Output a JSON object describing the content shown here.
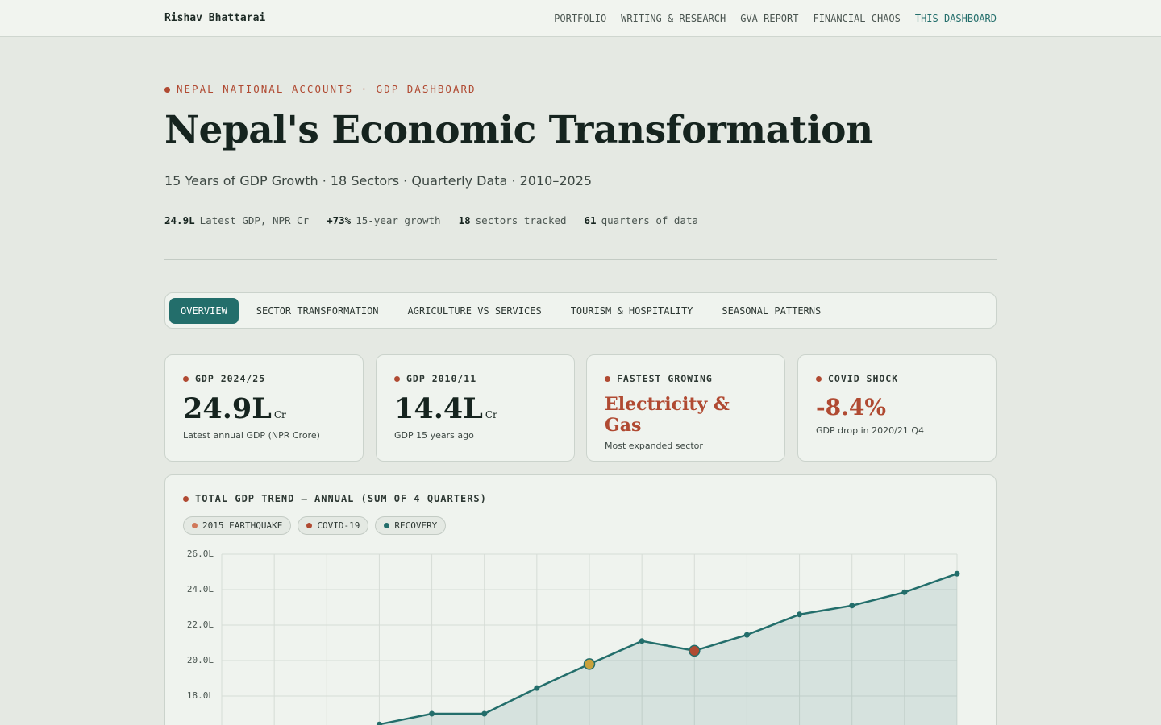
{
  "nav": {
    "brand": "Rishav Bhattarai",
    "links": [
      "PORTFOLIO",
      "WRITING & RESEARCH",
      "GVA REPORT",
      "FINANCIAL CHAOS",
      "THIS DASHBOARD"
    ]
  },
  "header": {
    "eyebrow": "NEPAL NATIONAL ACCOUNTS · GDP DASHBOARD",
    "title": "Nepal's Economic Transformation",
    "subtitle": "15 Years of GDP Growth · 18 Sectors · Quarterly Data · 2010–2025",
    "stats": [
      {
        "value": "24.9L",
        "label": "Latest GDP, NPR Cr"
      },
      {
        "value": "+73%",
        "label": "15-year growth"
      },
      {
        "value": "18",
        "label": "sectors tracked"
      },
      {
        "value": "61",
        "label": "quarters of data"
      }
    ]
  },
  "tabs": [
    "OVERVIEW",
    "SECTOR TRANSFORMATION",
    "AGRICULTURE VS SERVICES",
    "TOURISM & HOSPITALITY",
    "SEASONAL PATTERNS"
  ],
  "cards": [
    {
      "label": "GDP 2024/25",
      "value": "24.9L",
      "unit": "Cr",
      "note": "Latest annual GDP (NPR Crore)"
    },
    {
      "label": "GDP 2010/11",
      "value": "14.4L",
      "unit": "Cr",
      "note": "GDP 15 years ago"
    },
    {
      "label": "FASTEST GROWING",
      "value": "Electricity & Gas",
      "note": "Most expanded sector"
    },
    {
      "label": "COVID SHOCK",
      "value": "-8.4%",
      "note": "GDP drop in 2020/21 Q4"
    }
  ],
  "chart_data": {
    "type": "line",
    "title": "TOTAL GDP TREND — ANNUAL (SUM OF 4 QUARTERS)",
    "legend": [
      {
        "name": "2015 EARTHQUAKE",
        "color": "#d0785a"
      },
      {
        "name": "COVID-19",
        "color": "#b04a32"
      },
      {
        "name": "RECOVERY",
        "color": "#236e6b"
      }
    ],
    "categories": [
      null,
      null,
      null,
      null,
      null,
      null,
      null,
      null,
      null,
      null,
      null,
      null,
      null,
      null,
      null
    ],
    "series": [
      {
        "name": "RECOVERY",
        "color": "#236e6b",
        "values": [
          null,
          null,
          null,
          16.4,
          17.0,
          17.0,
          18.45,
          19.8,
          21.1,
          20.55,
          21.45,
          22.6,
          23.1,
          23.85,
          24.9
        ]
      }
    ],
    "markers": [
      {
        "name": "2015 EARTHQUAKE",
        "index": 7,
        "color": "#c9a13b"
      },
      {
        "name": "COVID-19",
        "index": 9,
        "color": "#b04a32"
      }
    ],
    "ylim": [
      16,
      26
    ],
    "yticks": [
      {
        "value": 18,
        "label": "18.0L"
      },
      {
        "value": 20,
        "label": "20.0L"
      },
      {
        "value": 22,
        "label": "22.0L"
      },
      {
        "value": 24,
        "label": "24.0L"
      },
      {
        "value": 26,
        "label": "26.0L"
      }
    ],
    "grid": true
  }
}
